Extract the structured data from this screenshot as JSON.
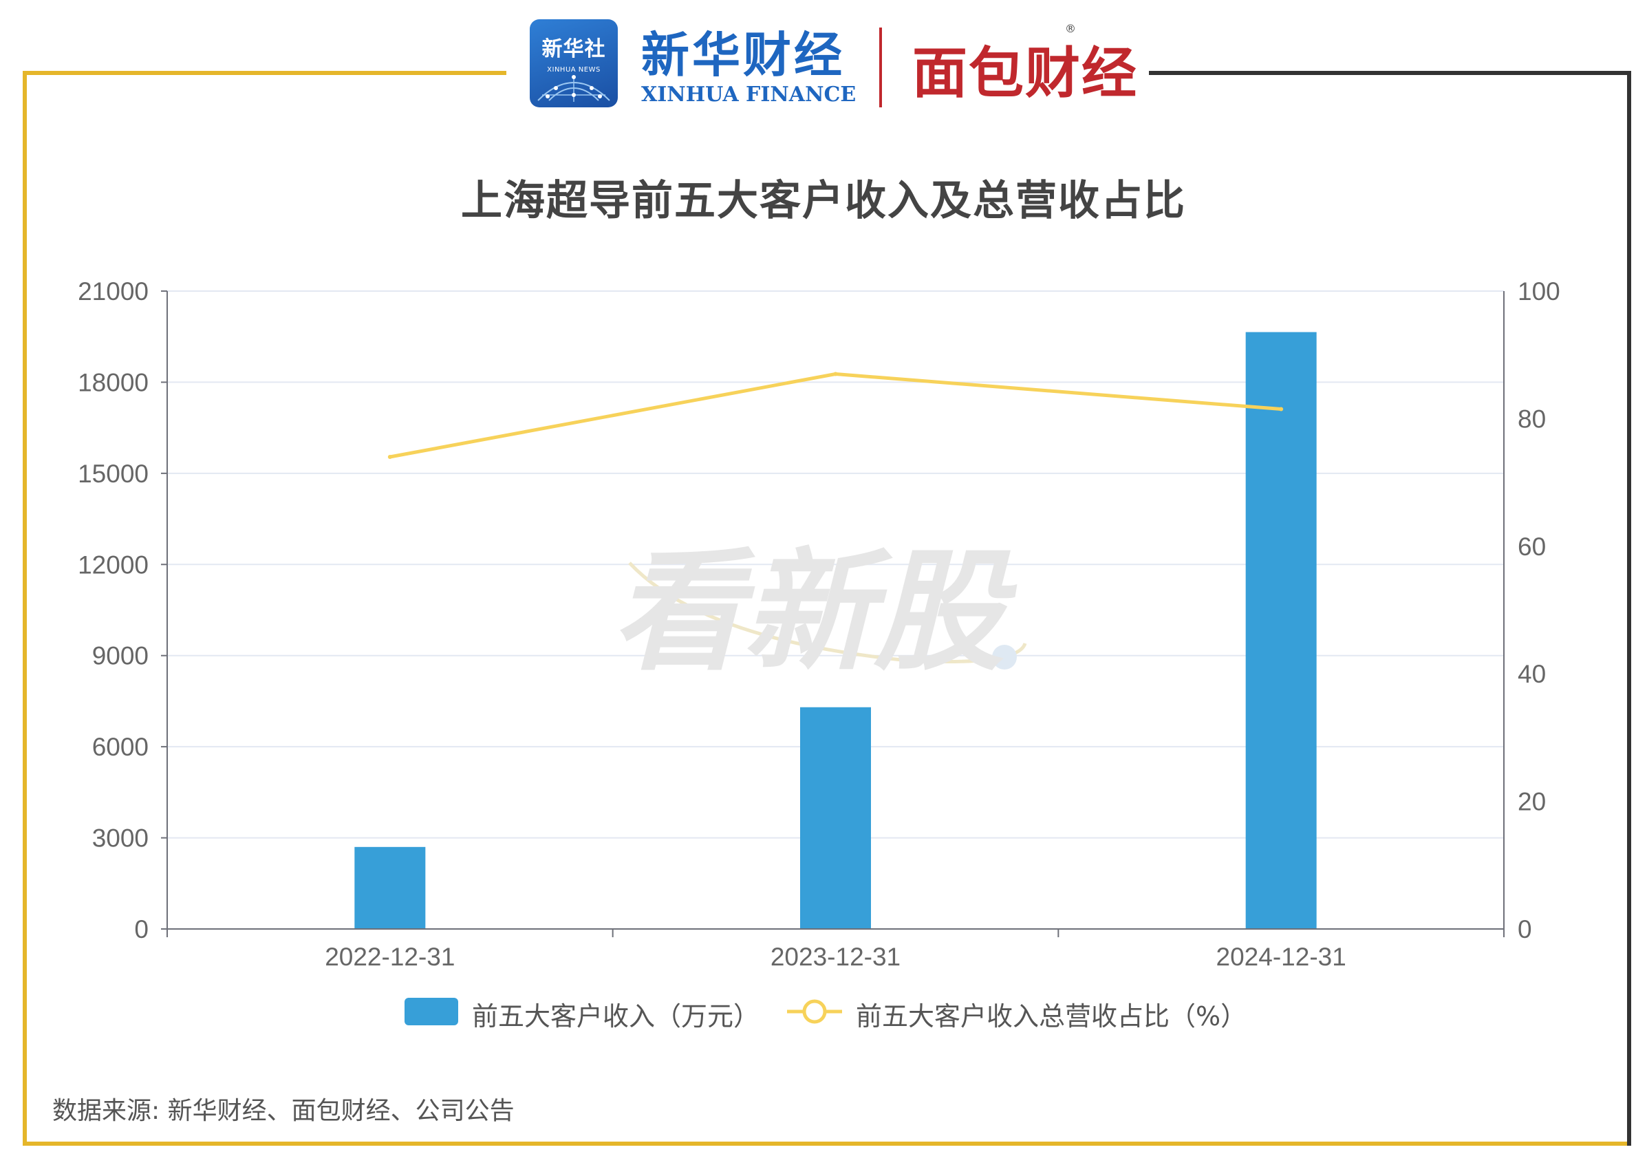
{
  "header": {
    "xinhua_badge_cn": "新华社",
    "xinhua_badge_en": "XINHUA NEWS",
    "finance_cn": "新华财经",
    "finance_en": "XINHUA FINANCE",
    "mianbao_logo": "面包财经",
    "registered_mark": "®"
  },
  "watermark_text": "看新股",
  "colors": {
    "bar": "#379fd8",
    "line": "#f7d25a",
    "frame_gold": "#e5b62a",
    "frame_dark": "#333333",
    "grid": "#e3e8f2"
  },
  "chart_data": {
    "type": "bar",
    "title": "上海超导前五大客户收入及总营收占比",
    "categories": [
      "2022-12-31",
      "2023-12-31",
      "2024-12-31"
    ],
    "series": [
      {
        "name": "前五大客户收入（万元）",
        "type": "bar",
        "axis": "left",
        "values": [
          2700,
          7300,
          19650
        ]
      },
      {
        "name": "前五大客户收入总营收占比（%）",
        "type": "line",
        "axis": "right",
        "values": [
          74.0,
          87.0,
          81.5
        ]
      }
    ],
    "y_left": {
      "min": 0,
      "max": 21000,
      "ticks": [
        "0",
        "3000",
        "6000",
        "9000",
        "12000",
        "15000",
        "18000",
        "21000"
      ]
    },
    "y_right": {
      "min": 0,
      "max": 100,
      "ticks": [
        "0",
        "20",
        "40",
        "60",
        "80",
        "100"
      ]
    },
    "grid": true,
    "legend_position": "bottom"
  },
  "legend": [
    {
      "label": "前五大客户收入（万元）"
    },
    {
      "label": "前五大客户收入总营收占比（%）"
    }
  ],
  "source_note": "数据来源: 新华财经、面包财经、公司公告"
}
